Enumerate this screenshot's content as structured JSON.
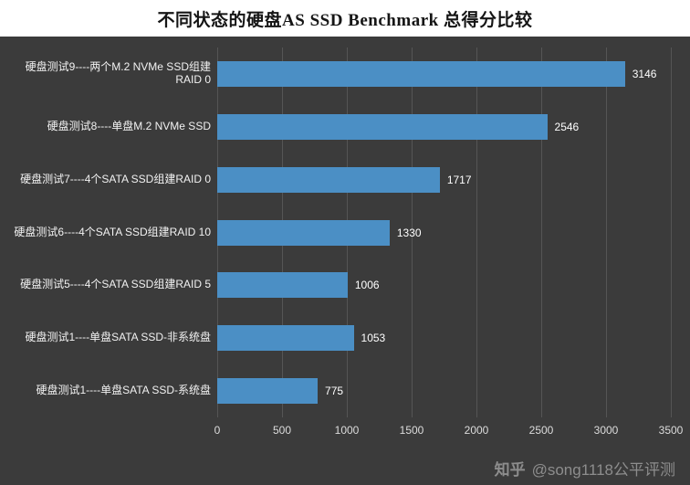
{
  "chart_data": {
    "type": "bar",
    "orientation": "horizontal",
    "title": "不同状态的硬盘AS SSD Benchmark 总得分比较",
    "xlabel": "",
    "ylabel": "",
    "categories": [
      "硬盘测试9----两个M.2 NVMe SSD组建RAID 0",
      "硬盘测试8----单盘M.2 NVMe SSD",
      "硬盘测试7----4个SATA SSD组建RAID 0",
      "硬盘测试6----4个SATA SSD组建RAID 10",
      "硬盘测试5----4个SATA SSD组建RAID 5",
      "硬盘测试1----单盘SATA SSD-非系统盘",
      "硬盘测试1----单盘SATA SSD-系统盘"
    ],
    "values": [
      3146,
      2546,
      1717,
      1330,
      1006,
      1053,
      775
    ],
    "xlim": [
      0,
      3500
    ],
    "xticks": [
      0,
      500,
      1000,
      1500,
      2000,
      2500,
      3000,
      3500
    ],
    "grid": true,
    "legend": "none",
    "bar_color": "#4b8fc5",
    "background_color": "#3b3b3b",
    "gridline_color": "#555555",
    "label_color": "#f2f2f2"
  },
  "watermark": {
    "logo": "知乎",
    "text": "@song1118公平评测"
  }
}
